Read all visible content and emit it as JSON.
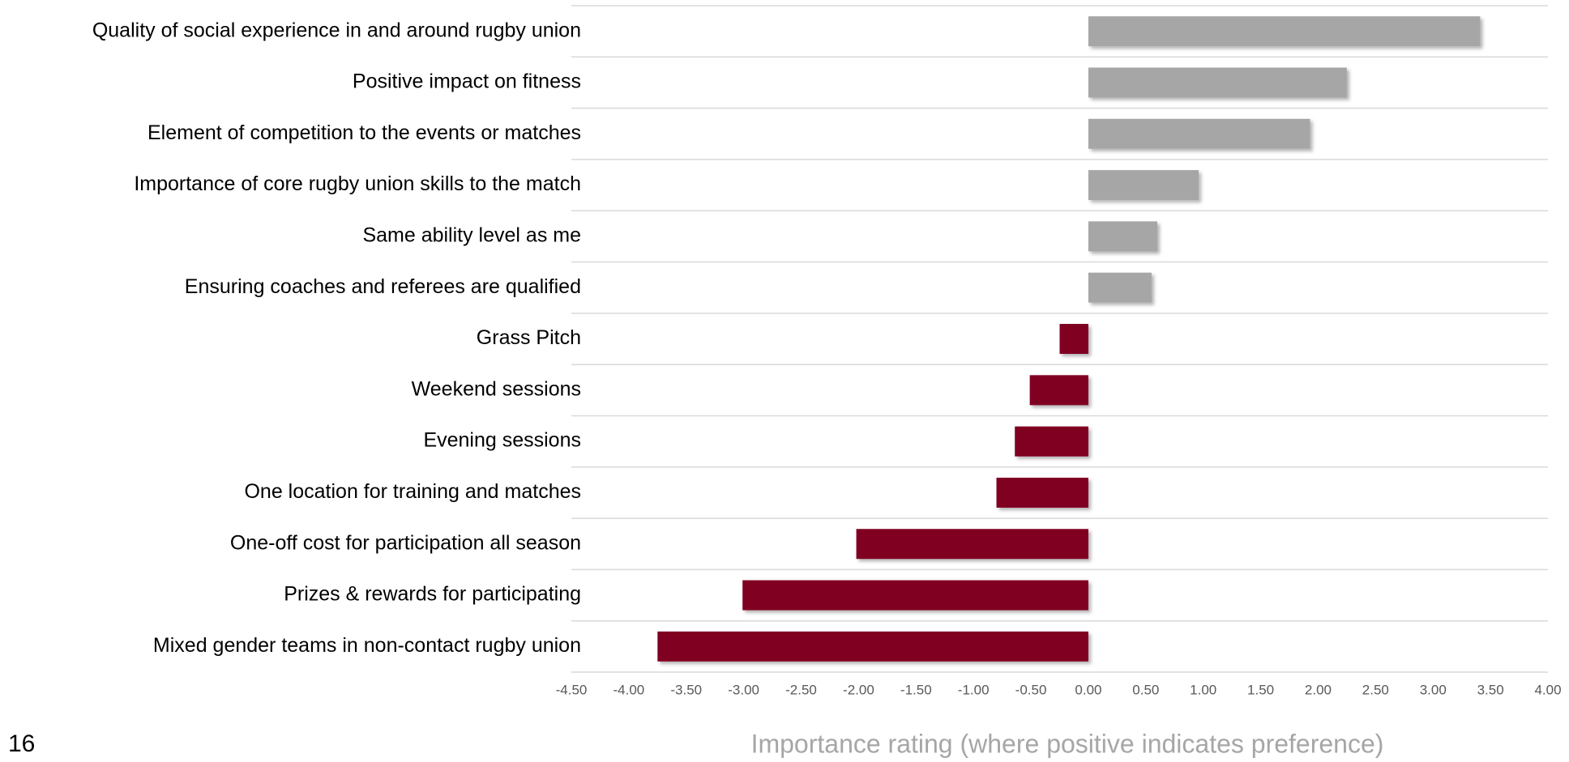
{
  "chart_data": {
    "type": "barh",
    "xlabel": "Importance rating (where positive indicates preference)",
    "page_number": "16",
    "categories": [
      "Quality of social experience in and around rugby union",
      "Positive impact on fitness",
      "Element of competition to the events or matches",
      "Importance of core rugby union skills to the match",
      "Same ability level as me",
      "Ensuring coaches and referees are qualified",
      "Grass Pitch",
      "Weekend sessions",
      "Evening sessions",
      "One location for training and matches",
      "One-off cost for participation all season",
      "Prizes & rewards for participating",
      "Mixed gender teams in non-contact rugby union"
    ],
    "values": [
      3.41,
      2.25,
      1.93,
      0.96,
      0.6,
      0.55,
      -0.25,
      -0.51,
      -0.64,
      -0.8,
      -2.02,
      -3.01,
      -3.75
    ],
    "colors": [
      "#a6a6a6",
      "#a6a6a6",
      "#a6a6a6",
      "#a6a6a6",
      "#a6a6a6",
      "#a6a6a6",
      "#800020",
      "#800020",
      "#800020",
      "#800020",
      "#800020",
      "#800020",
      "#800020"
    ],
    "xlim": [
      -4.5,
      4.0
    ],
    "xticks": [
      {
        "value": -4.5,
        "label": "-4.50"
      },
      {
        "value": -4.0,
        "label": "-4.00"
      },
      {
        "value": -3.5,
        "label": "-3.50"
      },
      {
        "value": -3.0,
        "label": "-3.00"
      },
      {
        "value": -2.5,
        "label": "-2.50"
      },
      {
        "value": -2.0,
        "label": "-2.00"
      },
      {
        "value": -1.5,
        "label": "-1.50"
      },
      {
        "value": -1.0,
        "label": "-1.00"
      },
      {
        "value": -0.5,
        "label": "-0.50"
      },
      {
        "value": 0.0,
        "label": "0.00"
      },
      {
        "value": 0.5,
        "label": "0.50"
      },
      {
        "value": 1.0,
        "label": "1.00"
      },
      {
        "value": 1.5,
        "label": "1.50"
      },
      {
        "value": 2.0,
        "label": "2.00"
      },
      {
        "value": 2.5,
        "label": "2.50"
      },
      {
        "value": 3.0,
        "label": "3.00"
      },
      {
        "value": 3.5,
        "label": "3.50"
      },
      {
        "value": 4.0,
        "label": "4.00"
      }
    ]
  }
}
